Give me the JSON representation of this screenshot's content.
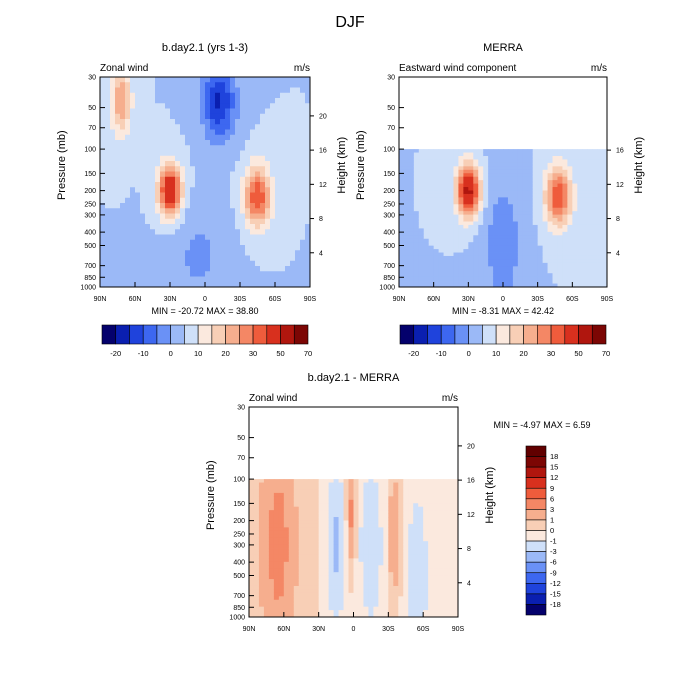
{
  "figure_title": "DJF",
  "chart_data": [
    {
      "type": "heatmap",
      "id": "model",
      "title": "b.day2.1 (yrs 1-3)",
      "left_label": "Zonal wind",
      "right_label": "m/s",
      "ylabel": "Pressure (mb)",
      "ylabel_right": "Height (km)",
      "x_ticks": [
        "90N",
        "60N",
        "30N",
        "0",
        "30S",
        "60S",
        "90S"
      ],
      "y_ticks": [
        "30",
        "50",
        "70",
        "100",
        "150",
        "200",
        "250",
        "300",
        "400",
        "500",
        "700",
        "850",
        "1000"
      ],
      "height_ticks": [
        "20",
        "16",
        "12",
        "8",
        "4"
      ],
      "min_label": "MIN = -20.72",
      "max_label": "MAX =  38.80",
      "colorbar_labels": [
        "-20",
        "-10",
        "0",
        "10",
        "20",
        "30",
        "50",
        "70"
      ],
      "data_top_mb": 30,
      "features": [
        {
          "lat": 72,
          "p": 45,
          "v": 20,
          "lat_sd": 6,
          "logp_sd": 0.4
        },
        {
          "lat": 30,
          "p": 200,
          "v": 38.8,
          "lat_sd": 7,
          "logp_sd": 0.3
        },
        {
          "lat": -45,
          "p": 220,
          "v": 30,
          "lat_sd": 8,
          "logp_sd": 0.35
        },
        {
          "lat": -12,
          "p": 45,
          "v": -20.7,
          "lat_sd": 10,
          "logp_sd": 0.45
        },
        {
          "lat": 5,
          "p": 600,
          "v": -6,
          "lat_sd": 18,
          "logp_sd": 0.6
        }
      ]
    },
    {
      "type": "heatmap",
      "id": "obs",
      "title": "MERRA",
      "left_label": "Eastward wind component",
      "right_label": "m/s",
      "ylabel": "Pressure (mb)",
      "ylabel_right": "Height (km)",
      "x_ticks": [
        "90N",
        "60N",
        "30N",
        "0",
        "30S",
        "60S",
        "90S"
      ],
      "y_ticks": [
        "30",
        "50",
        "70",
        "100",
        "150",
        "200",
        "250",
        "300",
        "400",
        "500",
        "700",
        "850",
        "1000"
      ],
      "height_ticks": [
        "16",
        "12",
        "8",
        "4"
      ],
      "min_label": "MIN =  -8.31",
      "max_label": "MAX =  42.42",
      "colorbar_labels": [
        "-20",
        "-10",
        "0",
        "10",
        "20",
        "30",
        "50",
        "70"
      ],
      "data_top_mb": 100,
      "features": [
        {
          "lat": 30,
          "p": 200,
          "v": 42.4,
          "lat_sd": 7,
          "logp_sd": 0.3
        },
        {
          "lat": -48,
          "p": 220,
          "v": 30,
          "lat_sd": 8,
          "logp_sd": 0.35
        },
        {
          "lat": 0,
          "p": 500,
          "v": -8.3,
          "lat_sd": 12,
          "logp_sd": 0.8
        }
      ]
    },
    {
      "type": "heatmap",
      "id": "diff",
      "title": "b.day2.1 - MERRA",
      "left_label": "Zonal wind",
      "right_label": "m/s",
      "ylabel": "Pressure (mb)",
      "ylabel_right": "Height (km)",
      "x_ticks": [
        "90N",
        "60N",
        "30N",
        "0",
        "30S",
        "60S",
        "90S"
      ],
      "y_ticks": [
        "30",
        "50",
        "70",
        "100",
        "150",
        "200",
        "250",
        "300",
        "400",
        "500",
        "700",
        "850",
        "1000"
      ],
      "height_ticks": [
        "20",
        "16",
        "12",
        "8",
        "4"
      ],
      "min_label": "MIN = -4.97",
      "max_label": "MAX =   6.59",
      "colorbar_labels": [
        "18",
        "15",
        "12",
        "9",
        "6",
        "3",
        "1",
        "0",
        "-1",
        "-3",
        "-6",
        "-9",
        "-12",
        "-15",
        "-18"
      ],
      "data_top_mb": 100,
      "features": [
        {
          "lat": 65,
          "p": 300,
          "v": 4,
          "lat_sd": 10,
          "logp_sd": 1.2
        },
        {
          "lat": 2,
          "p": 180,
          "v": 3.5,
          "lat_sd": 2.5,
          "logp_sd": 0.5
        },
        {
          "lat": -35,
          "p": 250,
          "v": 2.5,
          "lat_sd": 3,
          "logp_sd": 0.7
        },
        {
          "lat": 15,
          "p": 300,
          "v": -3.5,
          "lat_sd": 5,
          "logp_sd": 0.8
        },
        {
          "lat": -15,
          "p": 300,
          "v": -3,
          "lat_sd": 6,
          "logp_sd": 0.8
        },
        {
          "lat": -55,
          "p": 500,
          "v": -2.5,
          "lat_sd": 6,
          "logp_sd": 0.9
        }
      ]
    }
  ],
  "colors": {
    "abs_scale": [
      "#04016c",
      "#0a1fb0",
      "#1f43dc",
      "#3d67f0",
      "#6a91f6",
      "#9bb9f7",
      "#cfe0f9",
      "#fbe9de",
      "#f8cfb6",
      "#f6ae8e",
      "#f48765",
      "#ef5c3c",
      "#d8301e",
      "#b0160e",
      "#7c0604"
    ],
    "diff_scale": [
      "#04016c",
      "#0a1fb0",
      "#1f43dc",
      "#3d67f0",
      "#6a91f6",
      "#9bb9f7",
      "#cfe0f9",
      "#fbe9de",
      "#f8cfb6",
      "#f6ae8e",
      "#f48765",
      "#ef5c3c",
      "#d8301e",
      "#b0160e",
      "#7c0604",
      "#610000"
    ]
  }
}
